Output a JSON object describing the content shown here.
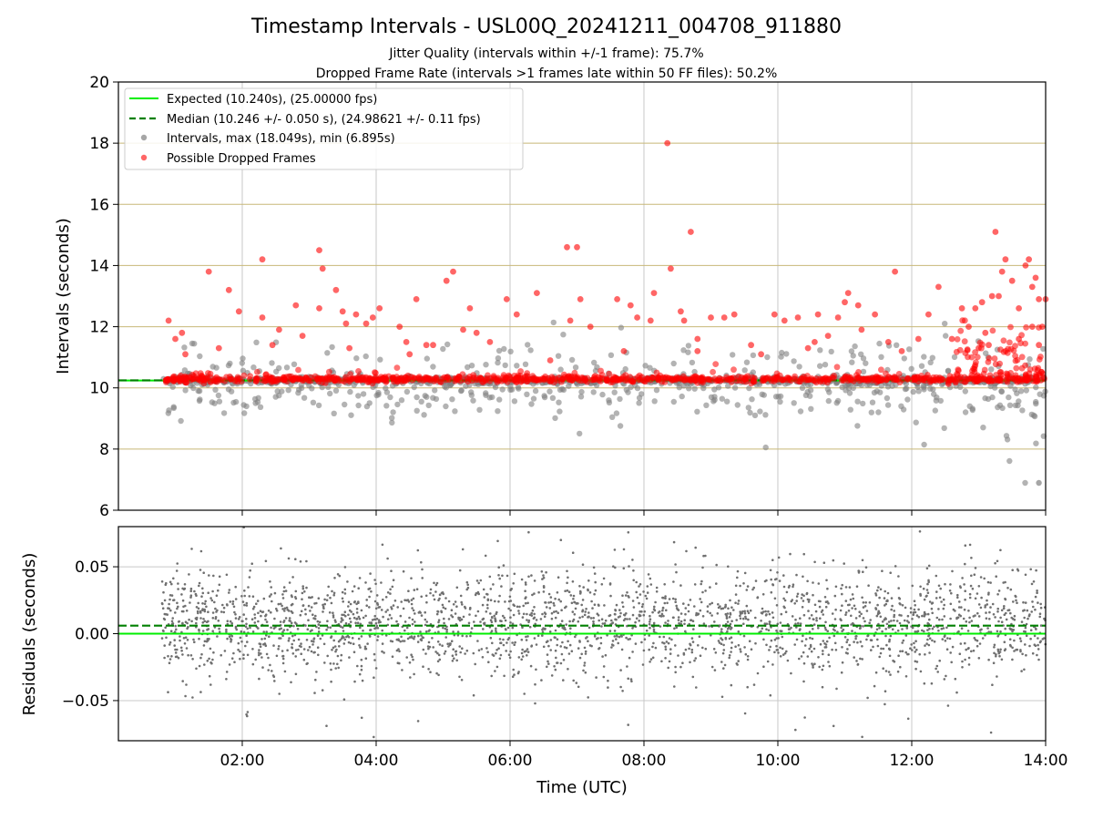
{
  "chart_data": {
    "title": "Timestamp Intervals - USL00Q_20241211_004708_911880",
    "subtitles": [
      "Jitter Quality (intervals within +/-1 frame): 75.7%",
      "Dropped Frame Rate (intervals >1 frames late within 50 FF files): 50.2%"
    ],
    "x_axis": {
      "label": "Time (UTC)",
      "range_hours": [
        0.15,
        14.0
      ],
      "ticks": [
        {
          "value": 2,
          "label": "02:00"
        },
        {
          "value": 4,
          "label": "04:00"
        },
        {
          "value": 6,
          "label": "06:00"
        },
        {
          "value": 8,
          "label": "08:00"
        },
        {
          "value": 10,
          "label": "10:00"
        },
        {
          "value": 12,
          "label": "12:00"
        },
        {
          "value": 14,
          "label": "14:00"
        }
      ]
    },
    "charts": [
      {
        "type": "scatter",
        "ylabel": "Intervals (seconds)",
        "ylim": [
          6,
          20
        ],
        "yticks": [
          6,
          8,
          10,
          12,
          14,
          16,
          18,
          20
        ],
        "ytick_labels": [
          "6",
          "8",
          "10",
          "12",
          "14",
          "16",
          "18",
          "20"
        ],
        "grid": "vertical lines at x ticks; horizontal olive lines at 8-18",
        "legend_position": "upper-left",
        "expected": {
          "name": "Expected (10.240s), (25.00000 fps)",
          "value": 10.24,
          "color": "#00ee00"
        },
        "median": {
          "name": "Median (10.246 +/- 0.050 s), (24.98621 +/- 0.11 fps)",
          "value": 10.246,
          "color": "#008000"
        },
        "intervals": {
          "name": "Intervals, max (18.049s), min (6.895s)",
          "max": 18.049,
          "min": 6.895,
          "color": "#808080",
          "x_start": 0.8,
          "x_end": 14.0
        },
        "dropped": {
          "name": "Possible Dropped Frames",
          "color": "#ff0000",
          "points": [
            [
              0.9,
              12.2
            ],
            [
              1.0,
              11.6
            ],
            [
              1.1,
              11.8
            ],
            [
              1.15,
              11.1
            ],
            [
              1.5,
              13.8
            ],
            [
              1.65,
              11.3
            ],
            [
              1.8,
              13.2
            ],
            [
              1.95,
              12.5
            ],
            [
              2.3,
              14.2
            ],
            [
              2.3,
              12.3
            ],
            [
              2.45,
              11.4
            ],
            [
              2.55,
              11.9
            ],
            [
              2.8,
              12.7
            ],
            [
              2.9,
              11.7
            ],
            [
              3.15,
              12.6
            ],
            [
              3.15,
              14.5
            ],
            [
              3.2,
              13.9
            ],
            [
              3.4,
              13.2
            ],
            [
              3.5,
              12.5
            ],
            [
              3.55,
              12.1
            ],
            [
              3.6,
              11.3
            ],
            [
              3.7,
              12.4
            ],
            [
              3.85,
              12.1
            ],
            [
              3.95,
              12.3
            ],
            [
              4.05,
              12.6
            ],
            [
              4.35,
              12.0
            ],
            [
              4.45,
              11.5
            ],
            [
              4.5,
              11.1
            ],
            [
              4.6,
              12.9
            ],
            [
              4.75,
              11.4
            ],
            [
              4.85,
              11.4
            ],
            [
              5.05,
              13.5
            ],
            [
              5.15,
              13.8
            ],
            [
              5.3,
              11.9
            ],
            [
              5.4,
              12.6
            ],
            [
              5.5,
              11.8
            ],
            [
              5.7,
              11.5
            ],
            [
              5.95,
              12.9
            ],
            [
              6.1,
              12.4
            ],
            [
              6.4,
              13.1
            ],
            [
              6.6,
              10.9
            ],
            [
              6.85,
              14.6
            ],
            [
              6.9,
              12.2
            ],
            [
              7.0,
              14.6
            ],
            [
              7.05,
              12.9
            ],
            [
              7.2,
              12.0
            ],
            [
              7.6,
              12.9
            ],
            [
              7.7,
              11.2
            ],
            [
              7.8,
              12.7
            ],
            [
              7.9,
              12.3
            ],
            [
              8.1,
              12.2
            ],
            [
              8.15,
              13.1
            ],
            [
              8.35,
              18.0
            ],
            [
              8.4,
              13.9
            ],
            [
              8.55,
              12.5
            ],
            [
              8.6,
              12.2
            ],
            [
              8.7,
              15.1
            ],
            [
              8.8,
              11.6
            ],
            [
              8.8,
              11.2
            ],
            [
              9.0,
              12.3
            ],
            [
              9.2,
              12.3
            ],
            [
              9.35,
              12.4
            ],
            [
              9.6,
              11.4
            ],
            [
              9.75,
              11.1
            ],
            [
              9.95,
              12.4
            ],
            [
              10.1,
              12.2
            ],
            [
              10.3,
              12.3
            ],
            [
              10.45,
              11.3
            ],
            [
              10.55,
              11.5
            ],
            [
              10.6,
              12.4
            ],
            [
              10.75,
              11.7
            ],
            [
              10.9,
              12.3
            ],
            [
              11.0,
              12.8
            ],
            [
              11.05,
              13.1
            ],
            [
              11.2,
              12.7
            ],
            [
              11.25,
              11.9
            ],
            [
              11.45,
              12.4
            ],
            [
              11.65,
              11.5
            ],
            [
              11.75,
              13.8
            ],
            [
              11.85,
              11.2
            ],
            [
              12.1,
              11.6
            ],
            [
              12.25,
              12.4
            ],
            [
              12.4,
              13.3
            ],
            [
              12.6,
              11.6
            ],
            [
              12.75,
              12.6
            ],
            [
              12.85,
              12.0
            ],
            [
              12.95,
              12.6
            ],
            [
              13.0,
              11.3
            ],
            [
              13.05,
              12.8
            ],
            [
              13.1,
              11.8
            ],
            [
              13.15,
              11.4
            ],
            [
              13.2,
              13.0
            ],
            [
              13.25,
              15.1
            ],
            [
              13.3,
              13.0
            ],
            [
              13.35,
              13.8
            ],
            [
              13.4,
              14.2
            ],
            [
              13.5,
              13.5
            ],
            [
              13.6,
              12.6
            ],
            [
              13.7,
              14.0
            ],
            [
              13.75,
              14.2
            ],
            [
              13.8,
              13.3
            ],
            [
              13.85,
              13.6
            ],
            [
              13.9,
              12.9
            ],
            [
              13.95,
              12.0
            ],
            [
              14.0,
              12.9
            ],
            [
              13.6,
              11.6
            ],
            [
              13.8,
              12.0
            ],
            [
              13.9,
              11.4
            ]
          ]
        }
      },
      {
        "type": "scatter",
        "ylabel": "Residuals (seconds)",
        "ylim": [
          -0.08,
          0.08
        ],
        "yticks": [
          -0.05,
          0.0,
          0.05
        ],
        "ytick_labels": [
          "−0.05",
          "0.00",
          "0.05"
        ],
        "grid": "vertical and horizontal grid at ticks",
        "expected_value": 0.0,
        "median_value": 0.006,
        "residual_range": [
          -0.08,
          0.08
        ]
      }
    ]
  }
}
